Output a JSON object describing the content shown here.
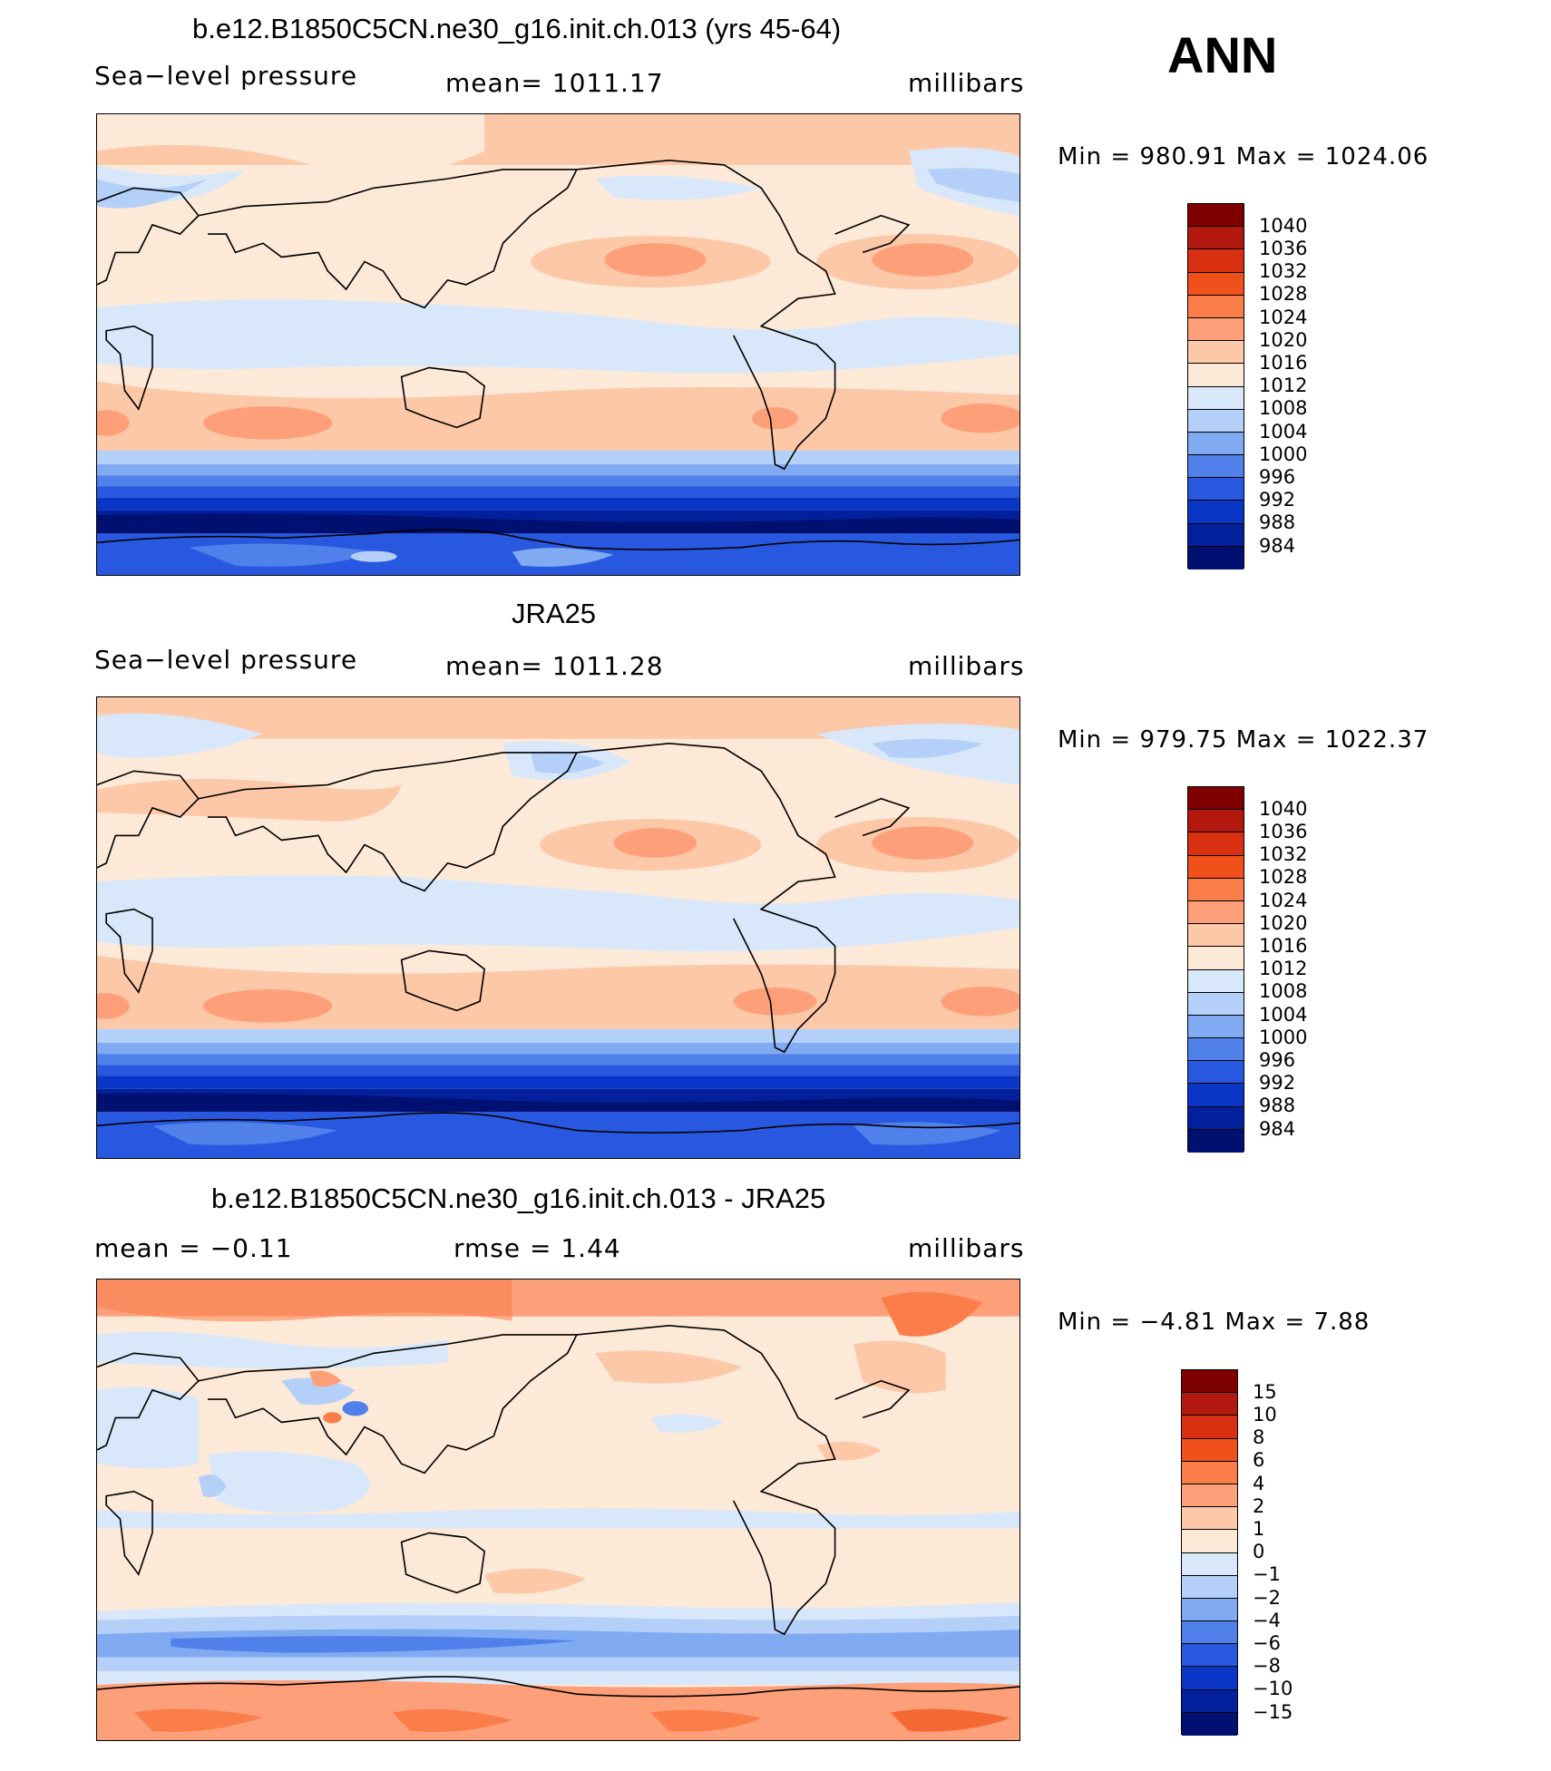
{
  "season": "ANN",
  "units": "millibars",
  "variable": "Sea−level pressure",
  "panels": [
    {
      "title": "b.e12.B1850C5CN.ne30_g16.init.ch.013 (yrs 45-64)",
      "left_label": "Sea−level pressure",
      "center_label": "mean=  1011.17",
      "right_label": "millibars",
      "minmax": "Min  =  980.91  Max  =  1024.06",
      "colorbar": "abs"
    },
    {
      "title": "JRA25",
      "left_label": "Sea−level pressure",
      "center_label": "mean=  1011.28",
      "right_label": "millibars",
      "minmax": "Min  =  979.75  Max  =  1022.37",
      "colorbar": "abs"
    },
    {
      "title": "b.e12.B1850C5CN.ne30_g16.init.ch.013 - JRA25",
      "left_label": "mean  =    −0.11",
      "center_label": "rmse  =     1.44",
      "right_label": "millibars",
      "minmax": "Min  =    −4.81  Max  =     7.88",
      "colorbar": "diff"
    }
  ],
  "colorbars": {
    "abs": {
      "labels": [
        "1040",
        "1036",
        "1032",
        "1028",
        "1024",
        "1020",
        "1016",
        "1012",
        "1008",
        "1004",
        "1000",
        "996",
        "992",
        "988",
        "984"
      ],
      "colors": [
        "#7f0000",
        "#b2180e",
        "#d83010",
        "#f0501a",
        "#fa7d4a",
        "#fda07a",
        "#fdc8a8",
        "#fde9d8",
        "#d8e8fa",
        "#b4d0f8",
        "#80aaf2",
        "#5080ea",
        "#2858e0",
        "#0a36c8",
        "#03209c",
        "#001070"
      ]
    },
    "diff": {
      "labels": [
        "15",
        "10",
        "8",
        "6",
        "4",
        "2",
        "1",
        "0",
        "−1",
        "−2",
        "−4",
        "−6",
        "−8",
        "−10",
        "−15"
      ],
      "colors": [
        "#7f0000",
        "#b2180e",
        "#d83010",
        "#f0501a",
        "#fa7d4a",
        "#fda07a",
        "#fdc8a8",
        "#fde9d8",
        "#d8e8fa",
        "#b4d0f8",
        "#80aaf2",
        "#5080ea",
        "#2858e0",
        "#0a36c8",
        "#03209c",
        "#001070"
      ]
    }
  }
}
